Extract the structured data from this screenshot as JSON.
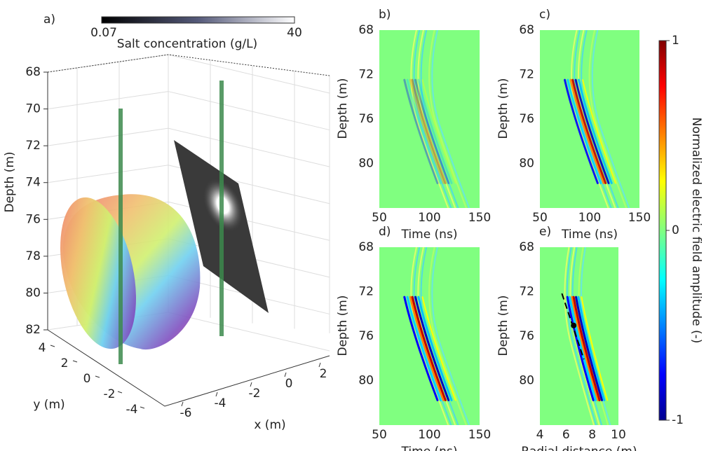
{
  "chart_data": [
    {
      "type": "3d",
      "panel": "a)",
      "zlabel": "Depth (m)",
      "zlim": [
        68,
        82
      ],
      "zticks": [
        68,
        70,
        72,
        74,
        76,
        78,
        80,
        82
      ],
      "xlabel": "x (m)",
      "xticks": [
        -6,
        -4,
        -2,
        0,
        2
      ],
      "ylabel": "y (m)",
      "yticks": [
        4,
        2,
        0,
        -2,
        -4
      ],
      "colorbar": {
        "label": "Salt concentration (g/L)",
        "ticks": [
          0.07,
          40
        ]
      }
    },
    {
      "type": "image",
      "panel": "b)",
      "xlabel": "Time (ns)",
      "ylabel": "Depth (m)",
      "xlim": [
        50,
        150
      ],
      "xticks": [
        50,
        100,
        150
      ],
      "ylim": [
        68,
        84
      ],
      "yticks": [
        68,
        72,
        76,
        80
      ]
    },
    {
      "type": "image",
      "panel": "c)",
      "xlabel": "Time (ns)",
      "ylabel": "Depth (m)",
      "xlim": [
        50,
        150
      ],
      "xticks": [
        50,
        100,
        150
      ],
      "ylim": [
        68,
        84
      ],
      "yticks": [
        68,
        72,
        76,
        80
      ]
    },
    {
      "type": "image",
      "panel": "d)",
      "xlabel": "Time (ns)",
      "ylabel": "Depth (m)",
      "xlim": [
        50,
        150
      ],
      "xticks": [
        50,
        100,
        150
      ],
      "ylim": [
        68,
        84
      ],
      "yticks": [
        68,
        72,
        76,
        80
      ]
    },
    {
      "type": "image",
      "panel": "e)",
      "xlabel": "Radial distance (m)",
      "ylabel": "Depth (m)",
      "xlim": [
        4,
        10
      ],
      "xticks": [
        4,
        6,
        8,
        10
      ],
      "ylim": [
        68,
        84
      ],
      "yticks": [
        68,
        72,
        76,
        80
      ]
    },
    {
      "type": "colorbar",
      "label": "Normalized electric field amplitude (-)",
      "ylim": [
        -1,
        1
      ],
      "yticks": [
        -1,
        0,
        1
      ]
    }
  ]
}
